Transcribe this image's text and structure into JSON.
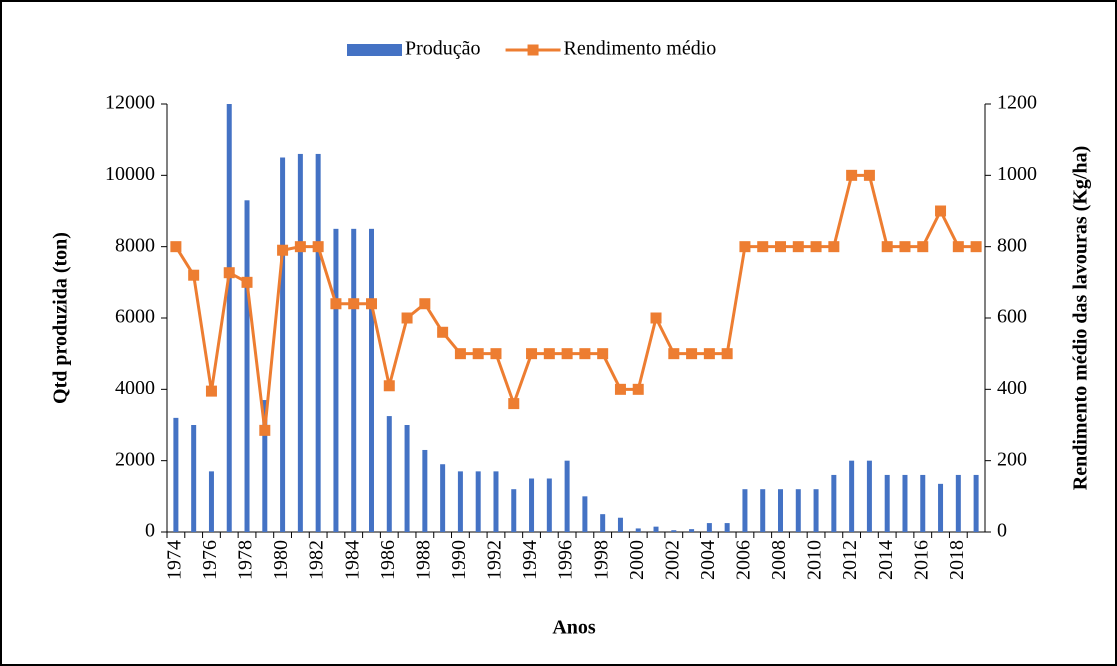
{
  "chart_data": {
    "type": "bar_line",
    "xlabel": "Anos",
    "ylabel": "Qtd produzida (ton)",
    "y2label": "Rendimento médio das lavouras (Kg/ha)",
    "categories": [
      "1974",
      null,
      "1976",
      null,
      "1978",
      null,
      "1980",
      null,
      "1982",
      null,
      "1984",
      null,
      "1986",
      null,
      "1988",
      null,
      "1990",
      null,
      "1992",
      null,
      "1994",
      null,
      "1996",
      null,
      "1998",
      null,
      "2000",
      null,
      "2002",
      null,
      "2004",
      null,
      "2006",
      null,
      "2008",
      null,
      "2010",
      null,
      "2012",
      null,
      "2014",
      null,
      "2016",
      null,
      "2018",
      null
    ],
    "series": [
      {
        "name": "Produção",
        "type": "bar",
        "color": "#4472c4",
        "values": [
          3200,
          3000,
          1700,
          12000,
          9300,
          3700,
          10500,
          10600,
          10600,
          8500,
          8500,
          8500,
          3250,
          3000,
          2300,
          1900,
          1700,
          1700,
          1700,
          1200,
          1500,
          1500,
          2000,
          1000,
          500,
          400,
          100,
          150,
          50,
          80,
          250,
          250,
          1200,
          1200,
          1200,
          1200,
          1200,
          1600,
          2000,
          2000,
          1600,
          1600,
          1600,
          1350,
          1600,
          1600
        ]
      },
      {
        "name": "Rendimento médio",
        "type": "line",
        "axis": "y2",
        "color": "#ed7d31",
        "values": [
          800,
          720,
          395,
          727,
          700,
          285,
          790,
          800,
          800,
          640,
          640,
          640,
          410,
          600,
          640,
          560,
          500,
          500,
          500,
          360,
          500,
          500,
          500,
          500,
          500,
          400,
          400,
          600,
          500,
          500,
          500,
          500,
          800,
          800,
          800,
          800,
          800,
          800,
          1000,
          1000,
          800,
          800,
          800,
          900,
          800,
          800
        ]
      }
    ],
    "ylim": [
      0,
      12000
    ],
    "yticks": [
      0,
      2000,
      4000,
      6000,
      8000,
      10000,
      12000
    ],
    "y2lim": [
      0,
      1200
    ],
    "y2ticks": [
      0,
      200,
      400,
      600,
      800,
      1000,
      1200
    ],
    "legend": "top"
  }
}
